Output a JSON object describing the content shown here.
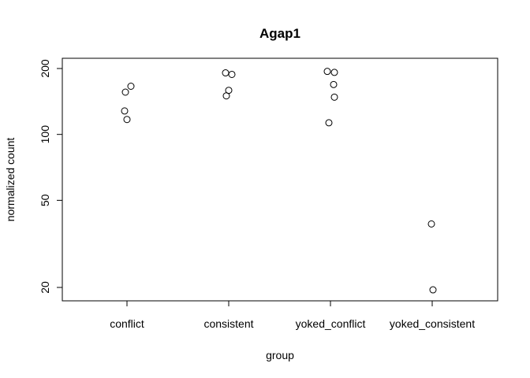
{
  "chart_data": {
    "type": "scatter",
    "title": "Agap1",
    "xlabel": "group",
    "ylabel": "normalized count",
    "categories": [
      "conflict",
      "consistent",
      "yoked_conflict",
      "yoked_consistent"
    ],
    "y_scale": "log",
    "ylim": [
      18,
      230
    ],
    "y_ticks": [
      20,
      50,
      100,
      200
    ],
    "grid": false,
    "points": [
      {
        "group": "conflict",
        "jitter": 0.05,
        "value": 166
      },
      {
        "group": "conflict",
        "jitter": -0.02,
        "value": 156
      },
      {
        "group": "conflict",
        "jitter": -0.03,
        "value": 128
      },
      {
        "group": "conflict",
        "jitter": 0.0,
        "value": 117
      },
      {
        "group": "consistent",
        "jitter": -0.04,
        "value": 191
      },
      {
        "group": "consistent",
        "jitter": 0.04,
        "value": 188
      },
      {
        "group": "consistent",
        "jitter": 0.0,
        "value": 159
      },
      {
        "group": "consistent",
        "jitter": -0.03,
        "value": 150
      },
      {
        "group": "yoked_conflict",
        "jitter": -0.04,
        "value": 194
      },
      {
        "group": "yoked_conflict",
        "jitter": 0.05,
        "value": 192
      },
      {
        "group": "yoked_conflict",
        "jitter": 0.04,
        "value": 169
      },
      {
        "group": "yoked_conflict",
        "jitter": 0.05,
        "value": 148
      },
      {
        "group": "yoked_conflict",
        "jitter": -0.02,
        "value": 113
      },
      {
        "group": "yoked_consistent",
        "jitter": -0.01,
        "value": 39
      },
      {
        "group": "yoked_consistent",
        "jitter": 0.01,
        "value": 19.5
      }
    ]
  }
}
